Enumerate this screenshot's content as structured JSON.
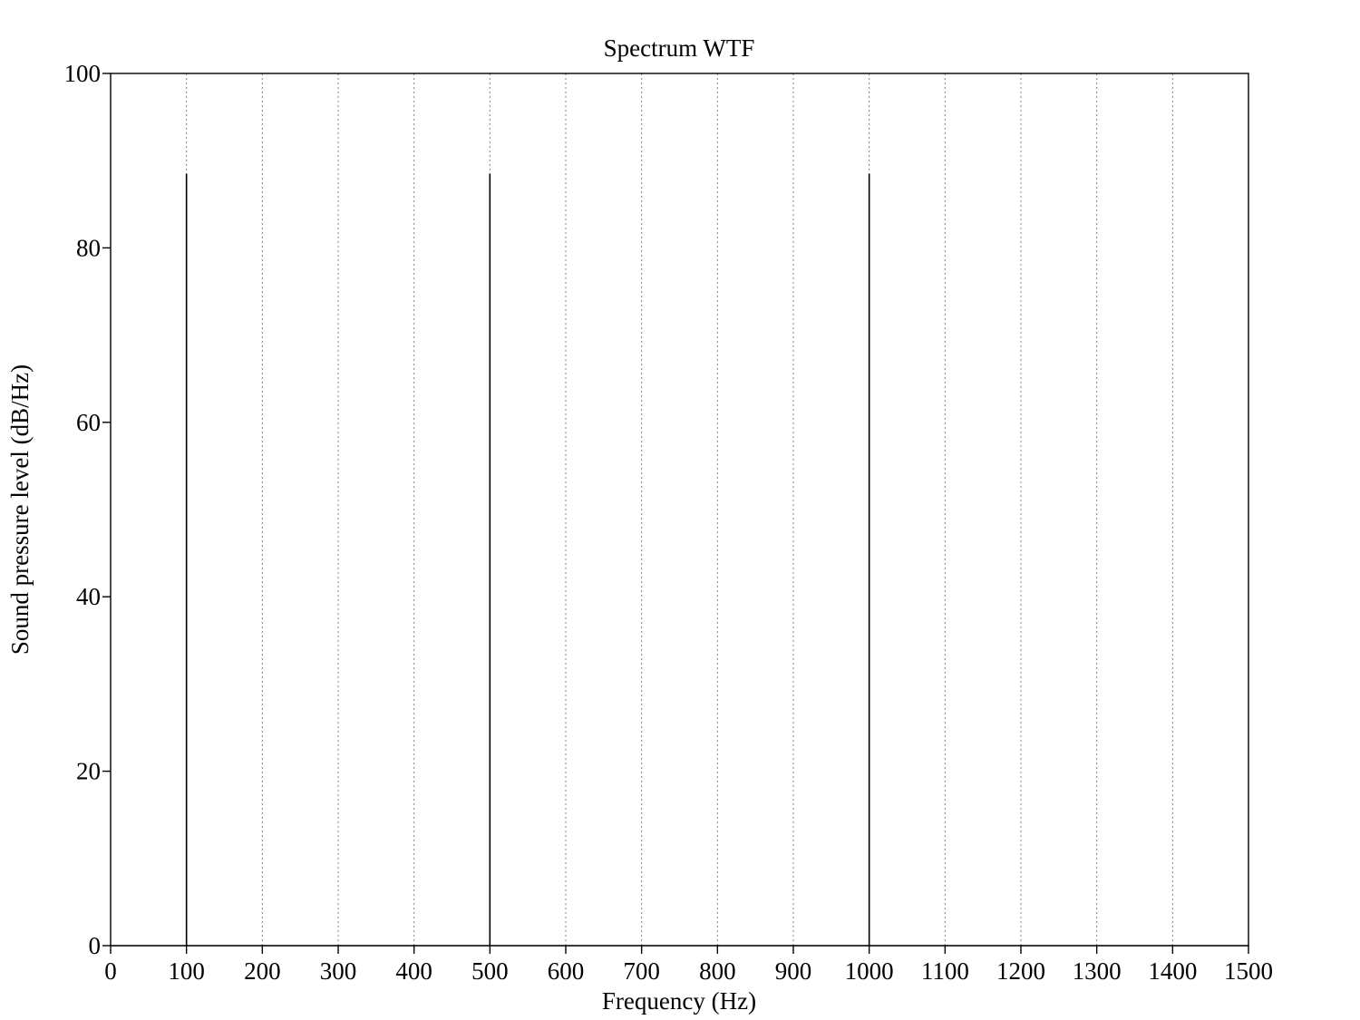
{
  "chart_data": {
    "type": "line",
    "title": "Spectrum WTF",
    "xlabel": "Frequency (Hz)",
    "ylabel": "Sound pressure level (dB/Hz)",
    "xlim": [
      0,
      1500
    ],
    "ylim": [
      0,
      100
    ],
    "x_ticks": [
      0,
      100,
      200,
      300,
      400,
      500,
      600,
      700,
      800,
      900,
      1000,
      1100,
      1200,
      1300,
      1400,
      1500
    ],
    "x_tick_labels": [
      "0",
      "100",
      "200",
      "300",
      "400",
      "500",
      "600",
      "700",
      "800",
      "900",
      "1000",
      "1100",
      "1200",
      "1300",
      "1400",
      "1500"
    ],
    "y_ticks": [
      0,
      20,
      40,
      60,
      80,
      100
    ],
    "y_tick_labels": [
      "0",
      "20",
      "40",
      "60",
      "80",
      "100"
    ],
    "grid": "vertical dotted at x ticks",
    "legend": "none",
    "series": [
      {
        "peaks": [
          {
            "x": 100,
            "y": 88.5
          },
          {
            "x": 500,
            "y": 88.5
          },
          {
            "x": 1000,
            "y": 88.5
          }
        ],
        "baseline": 0,
        "color": "#000000"
      }
    ]
  }
}
